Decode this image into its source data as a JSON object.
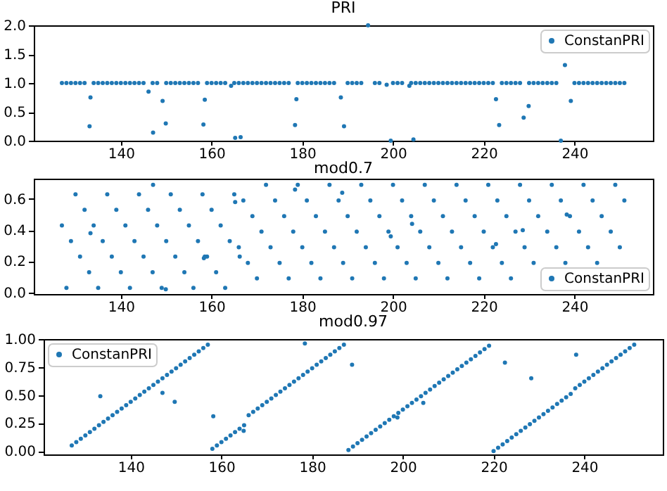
{
  "chart_data": [
    {
      "type": "scatter",
      "title": "PRI",
      "legend": "top right",
      "marker": "circle",
      "xlim": [
        120.8,
        257.3
      ],
      "xticks": [
        140,
        160,
        180,
        200,
        220,
        240
      ],
      "ylim": [
        0,
        2
      ],
      "yticks": [
        {
          "value": 0,
          "label": "0.0"
        },
        0.5,
        {
          "value": 1,
          "label": "1.0"
        },
        1.5,
        {
          "value": 2,
          "label": "2.0"
        }
      ],
      "x": [
        127,
        128,
        129,
        130,
        131,
        132,
        134,
        135,
        136,
        137,
        138,
        139,
        140,
        141,
        142,
        143,
        144,
        145,
        147,
        148,
        150,
        151,
        152,
        153,
        154,
        155,
        156,
        157,
        159,
        160,
        161,
        162,
        163,
        165,
        166,
        167,
        168,
        169,
        170,
        171,
        172,
        173,
        174,
        175,
        176,
        177,
        179,
        180,
        181,
        182,
        183,
        184,
        185,
        186,
        187,
        190,
        191,
        192,
        193,
        196,
        197,
        200,
        201,
        202,
        204,
        205,
        206,
        207,
        208,
        209,
        210,
        211,
        212,
        213,
        214,
        215,
        216,
        217,
        218,
        219,
        220,
        221,
        222,
        224,
        225,
        226,
        227,
        228,
        230,
        231,
        232,
        233,
        234,
        235,
        236,
        240,
        241,
        242,
        243,
        244,
        245,
        246,
        247,
        248,
        249,
        250,
        251,
        133.1,
        133.3,
        146.1,
        147.1,
        149.2,
        149.9,
        158.2,
        158.5,
        164.3,
        165.2,
        166.4,
        178.4,
        178.7,
        188.5,
        189.2,
        194.5,
        198.6,
        199.5,
        203.6,
        204.5,
        222.7,
        223.4,
        228.8,
        229.9,
        237.0,
        237.9,
        239.2
      ],
      "series": [
        {
          "name": "ConstanPRI",
          "color": "#1f77b4",
          "values": [
            1,
            1,
            1,
            1,
            1,
            1,
            1,
            1,
            1,
            1,
            1,
            1,
            1,
            1,
            1,
            1,
            1,
            1,
            1,
            1,
            1,
            1,
            1,
            1,
            1,
            1,
            1,
            1,
            1,
            1,
            1,
            1,
            1,
            1,
            1,
            1,
            1,
            1,
            1,
            1,
            1,
            1,
            1,
            1,
            1,
            1,
            1,
            1,
            1,
            1,
            1,
            1,
            1,
            1,
            1,
            1,
            1,
            1,
            1,
            1,
            1,
            1,
            1,
            1,
            1,
            1,
            1,
            1,
            1,
            1,
            1,
            1,
            1,
            1,
            1,
            1,
            1,
            1,
            1,
            1,
            1,
            1,
            1,
            1,
            1,
            1,
            1,
            1,
            1,
            1,
            1,
            1,
            1,
            1,
            1,
            1,
            1,
            1,
            1,
            1,
            1,
            1,
            1,
            1,
            1,
            1,
            1,
            0.25,
            0.75,
            0.85,
            0.14,
            0.69,
            0.3,
            0.28,
            0.71,
            0.95,
            0.05,
            0.06,
            0.27,
            0.72,
            0.75,
            0.25,
            2.0,
            0.97,
            0.0,
            0.95,
            0.02,
            0.72,
            0.27,
            0.4,
            0.6,
            0.0,
            1.31,
            0.69
          ]
        }
      ]
    },
    {
      "type": "scatter",
      "title": "mod0.7",
      "legend": "bottom right",
      "marker": "circle",
      "xlim": [
        120.8,
        257.3
      ],
      "xticks": [
        140,
        160,
        180,
        200,
        220,
        240
      ],
      "ylim": [
        -0.01,
        0.73
      ],
      "yticks": [
        {
          "value": 0,
          "label": "0.0"
        },
        0.2,
        0.4,
        0.6
      ],
      "x": [
        127,
        128,
        129,
        130,
        131,
        132,
        133,
        134,
        135,
        136,
        137,
        138,
        139,
        140,
        141,
        142,
        143,
        144,
        145,
        146,
        147,
        148,
        149,
        150,
        151,
        152,
        153,
        154,
        155,
        156,
        157,
        158,
        159,
        160,
        161,
        162,
        163,
        164,
        165,
        166,
        167,
        168,
        169,
        170,
        171,
        172,
        173,
        174,
        175,
        176,
        177,
        178,
        179,
        180,
        181,
        182,
        183,
        184,
        185,
        186,
        187,
        188,
        189,
        190,
        191,
        192,
        193,
        194,
        195,
        196,
        197,
        198,
        199,
        200,
        201,
        202,
        203,
        204,
        205,
        206,
        207,
        208,
        209,
        210,
        211,
        212,
        213,
        214,
        215,
        216,
        217,
        218,
        219,
        220,
        221,
        222,
        223,
        224,
        225,
        226,
        227,
        228,
        229,
        230,
        231,
        232,
        234,
        235,
        236,
        237,
        238,
        239,
        241,
        242,
        243,
        244,
        245,
        246,
        248,
        249,
        250,
        251,
        133.3,
        147.1,
        149.9,
        158.3,
        158.5,
        165.2,
        166.2,
        178.4,
        188.8,
        199.5,
        204.2,
        222.7,
        228.6,
        238.3
      ],
      "series": [
        {
          "name": "ConstanPRI",
          "color": "#1f77b4",
          "values": [
            0.43,
            0.03,
            0.33,
            0.63,
            0.23,
            0.53,
            0.13,
            0.43,
            0.03,
            0.33,
            0.63,
            0.23,
            0.53,
            0.13,
            0.43,
            0.03,
            0.33,
            0.63,
            0.23,
            0.53,
            0.13,
            0.43,
            0.03,
            0.33,
            0.63,
            0.23,
            0.53,
            0.13,
            0.43,
            0.03,
            0.33,
            0.63,
            0.23,
            0.53,
            0.13,
            0.43,
            0.03,
            0.33,
            0.63,
            0.29,
            0.59,
            0.19,
            0.49,
            0.09,
            0.39,
            0.69,
            0.29,
            0.59,
            0.19,
            0.49,
            0.09,
            0.39,
            0.69,
            0.29,
            0.59,
            0.19,
            0.49,
            0.09,
            0.39,
            0.69,
            0.29,
            0.59,
            0.19,
            0.49,
            0.09,
            0.39,
            0.69,
            0.29,
            0.59,
            0.19,
            0.49,
            0.09,
            0.39,
            0.69,
            0.29,
            0.59,
            0.19,
            0.49,
            0.09,
            0.39,
            0.69,
            0.29,
            0.59,
            0.19,
            0.49,
            0.09,
            0.39,
            0.69,
            0.29,
            0.59,
            0.19,
            0.49,
            0.09,
            0.39,
            0.69,
            0.29,
            0.59,
            0.19,
            0.49,
            0.09,
            0.39,
            0.69,
            0.29,
            0.59,
            0.19,
            0.49,
            0.39,
            0.69,
            0.29,
            0.59,
            0.19,
            0.49,
            0.39,
            0.69,
            0.29,
            0.59,
            0.19,
            0.49,
            0.39,
            0.69,
            0.29,
            0.59,
            0.38,
            0.69,
            0.02,
            0.22,
            0.23,
            0.58,
            0.23,
            0.66,
            0.64,
            0.36,
            0.44,
            0.31,
            0.4,
            0.5
          ]
        }
      ]
    },
    {
      "type": "scatter",
      "title": "mod0.97",
      "legend": "top left",
      "marker": "circle",
      "xlim": [
        120.8,
        257.3
      ],
      "xticks": [
        140,
        160,
        180,
        200,
        220,
        240
      ],
      "ylim": [
        -0.03,
        1.0
      ],
      "yticks": [
        {
          "value": 0,
          "label": "0.00"
        },
        0.25,
        {
          "value": 0.5,
          "label": "0.50"
        },
        0.75,
        {
          "value": 1,
          "label": "1.00"
        }
      ],
      "x": [
        127,
        128,
        129,
        130,
        131,
        132,
        133,
        134,
        135,
        136,
        137,
        138,
        139,
        140,
        141,
        142,
        143,
        144,
        145,
        146,
        147,
        148,
        149,
        150,
        151,
        152,
        153,
        154,
        155,
        156,
        157,
        158,
        159,
        160,
        161,
        162,
        163,
        164,
        165,
        166,
        167,
        168,
        169,
        170,
        171,
        172,
        173,
        174,
        175,
        176,
        177,
        178,
        179,
        180,
        181,
        182,
        183,
        184,
        185,
        186,
        187,
        188,
        189,
        190,
        191,
        192,
        193,
        194,
        195,
        196,
        197,
        198,
        199,
        200,
        201,
        202,
        203,
        204,
        205,
        206,
        207,
        208,
        209,
        210,
        211,
        212,
        213,
        214,
        215,
        216,
        217,
        218,
        219,
        220,
        221,
        222,
        223,
        224,
        225,
        226,
        227,
        228,
        229,
        230,
        231,
        232,
        233,
        234,
        235,
        236,
        237,
        238,
        239,
        240,
        241,
        242,
        243,
        244,
        245,
        246,
        247,
        248,
        249,
        250,
        251,
        133.3,
        147.0,
        149.7,
        158.2,
        164.9,
        178.4,
        188.8,
        198.8,
        204.5,
        222.5,
        228.3,
        238.2
      ],
      "series": [
        {
          "name": "ConstanPRI",
          "color": "#1f77b4",
          "values": [
            0.05,
            0.08,
            0.11,
            0.14,
            0.17,
            0.2,
            0.23,
            0.26,
            0.29,
            0.32,
            0.35,
            0.38,
            0.41,
            0.44,
            0.47,
            0.5,
            0.53,
            0.56,
            0.59,
            0.62,
            0.65,
            0.68,
            0.71,
            0.74,
            0.77,
            0.8,
            0.83,
            0.86,
            0.89,
            0.92,
            0.95,
            0.02,
            0.05,
            0.08,
            0.11,
            0.14,
            0.17,
            0.2,
            0.23,
            0.32,
            0.35,
            0.38,
            0.41,
            0.44,
            0.47,
            0.5,
            0.53,
            0.56,
            0.59,
            0.62,
            0.65,
            0.68,
            0.71,
            0.74,
            0.77,
            0.8,
            0.83,
            0.86,
            0.89,
            0.92,
            0.95,
            0.01,
            0.04,
            0.07,
            0.1,
            0.13,
            0.16,
            0.19,
            0.22,
            0.25,
            0.28,
            0.31,
            0.34,
            0.37,
            0.4,
            0.43,
            0.46,
            0.49,
            0.52,
            0.55,
            0.58,
            0.61,
            0.64,
            0.67,
            0.7,
            0.73,
            0.76,
            0.79,
            0.82,
            0.85,
            0.88,
            0.91,
            0.94,
            0.0,
            0.03,
            0.06,
            0.09,
            0.12,
            0.15,
            0.18,
            0.21,
            0.24,
            0.27,
            0.3,
            0.33,
            0.36,
            0.39,
            0.42,
            0.45,
            0.48,
            0.51,
            0.56,
            0.59,
            0.62,
            0.65,
            0.68,
            0.71,
            0.74,
            0.77,
            0.8,
            0.83,
            0.86,
            0.89,
            0.92,
            0.95,
            0.49,
            0.52,
            0.44,
            0.31,
            0.18,
            0.96,
            0.77,
            0.3,
            0.43,
            0.79,
            0.65,
            0.86
          ]
        }
      ]
    }
  ]
}
